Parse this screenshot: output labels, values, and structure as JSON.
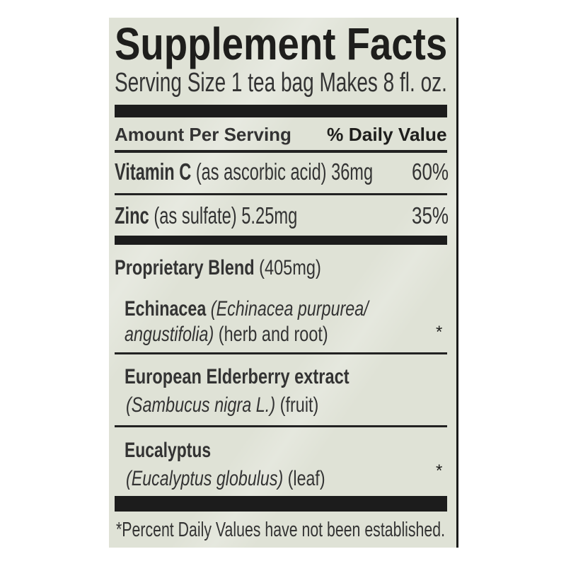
{
  "title": "Supplement Facts",
  "serving": "Serving Size 1 tea bag Makes 8 fl. oz.",
  "header": {
    "amount": "Amount Per Serving",
    "dv": "% Daily Value"
  },
  "nutrients": [
    {
      "name": "Vitamin C",
      "detail": "(as ascorbic acid) 36mg",
      "dv": "60%"
    },
    {
      "name": "Zinc",
      "detail": "(as sulfate) 5.25mg",
      "dv": "35%"
    }
  ],
  "blend": {
    "name": "Proprietary Blend",
    "amount": "(405mg)",
    "ingredients": [
      {
        "name": "Echinacea",
        "latin_1": "(Echinacea purpurea/",
        "latin_2": "angustifolia)",
        "part": "(herb and root)",
        "dv": "*"
      },
      {
        "name": "European Elderberry extract",
        "latin": "(Sambucus nigra L.)",
        "part": "(fruit)"
      },
      {
        "name": "Eucalyptus",
        "latin": "(Eucalyptus globulus)",
        "part": "(leaf)",
        "dv": "*"
      }
    ]
  },
  "footnote": "*Percent Daily Values have not been established."
}
